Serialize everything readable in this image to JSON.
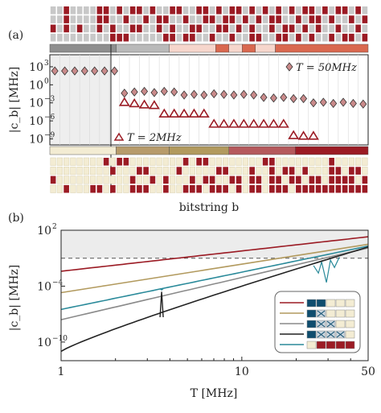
{
  "colors": {
    "red": "#9b1b24",
    "grey": "#c8c8c8",
    "cream": "#f3ecd3",
    "tan": "#b79b6b",
    "rose": "#b5595c",
    "salmon": "#d9684f",
    "pink": "#f6d6cc",
    "lightgrey": "#b9b9b9",
    "darkgrey": "#8e8e8e",
    "gold": "#b29a5e",
    "teal": "#2a8a9a",
    "black": "#222222",
    "navy": "#0f4d6e",
    "line_grey": "#8a8a8a"
  },
  "chart_data": [
    {
      "panel_label": "(a)",
      "type": "scatter",
      "ylabel": "|c_b| [MHz]",
      "xlabel": "bitstring b",
      "y_scale": "log",
      "ylim_exp": [
        -10,
        5
      ],
      "y_tick_exps": [
        3,
        0,
        -3,
        -6,
        -9
      ],
      "y_tick_labels": [
        "10",
        "10",
        "10",
        "10",
        "10"
      ],
      "y_tick_sups": [
        "3",
        "0",
        "−3",
        "−6",
        "−9"
      ],
      "series": [
        {
          "name": "T = 50MHz",
          "marker": "diamond",
          "x": [
            0,
            1,
            2,
            3,
            4,
            5,
            6,
            7,
            8,
            9,
            10,
            11,
            12,
            13,
            14,
            15,
            16,
            17,
            18,
            19,
            20,
            21,
            22,
            23,
            24,
            25,
            26,
            27,
            28,
            29,
            30,
            31
          ],
          "log10_y": [
            2.3,
            2.3,
            2.3,
            2.3,
            2.3,
            2.3,
            2.3,
            -1.4,
            -1.2,
            -1.1,
            -1.3,
            -1.1,
            -1.2,
            -1.7,
            -1.6,
            -1.7,
            -1.5,
            -1.6,
            -1.7,
            -1.6,
            -1.7,
            -2.1,
            -2.2,
            -2.1,
            -2.3,
            -2.3,
            -3.0,
            -2.9,
            -3.1,
            -2.9,
            -3.1,
            -3.2
          ]
        },
        {
          "name": "T = 2MHz",
          "marker": "triangle",
          "x": [
            7,
            8,
            9,
            10,
            11,
            12,
            13,
            14,
            15,
            16,
            17,
            18,
            19,
            20,
            21,
            22,
            23,
            24,
            25,
            26
          ],
          "log10_y": [
            -2.9,
            -3.1,
            -3.3,
            -3.4,
            -4.8,
            -4.8,
            -4.8,
            -4.8,
            -4.8,
            -6.5,
            -6.5,
            -6.5,
            -6.5,
            -6.5,
            -6.5,
            -6.5,
            -6.5,
            -8.4,
            -8.5,
            -8.5
          ]
        }
      ],
      "legend_labels": {
        "top": "T = 50MHz",
        "bottom": "T = 2MHz"
      },
      "top_grid": [
        [
          2,
          2,
          1,
          2,
          2,
          2,
          2,
          1,
          1,
          2,
          1,
          2,
          1,
          1,
          2,
          1,
          2,
          2,
          1,
          1,
          2,
          2,
          1,
          1,
          2,
          1,
          2,
          1,
          1,
          2,
          1,
          2,
          1,
          2,
          1,
          2,
          1,
          2,
          1,
          1,
          2,
          1,
          2,
          1,
          1,
          2,
          1,
          2
        ],
        [
          2,
          2,
          1,
          2,
          2,
          2,
          2,
          1,
          1,
          2,
          2,
          1,
          2,
          2,
          1,
          2,
          1,
          1,
          2,
          2,
          1,
          2,
          2,
          1,
          1,
          2,
          1,
          1,
          2,
          1,
          2,
          1,
          2,
          1,
          1,
          2,
          2,
          1,
          2,
          1,
          1,
          2,
          1,
          2,
          2,
          1,
          2,
          1
        ],
        [
          1,
          2,
          1,
          2,
          1,
          2,
          2,
          1,
          2,
          1,
          2,
          2,
          1,
          1,
          2,
          2,
          1,
          2,
          1,
          2,
          2,
          1,
          1,
          2,
          2,
          1,
          1,
          2,
          1,
          2,
          1,
          2,
          2,
          1,
          2,
          1,
          1,
          2,
          1,
          2,
          1,
          2,
          2,
          1,
          2,
          2,
          1,
          2
        ],
        [
          2,
          2,
          2,
          2,
          2,
          2,
          2,
          2,
          2,
          1,
          1,
          1,
          2,
          2,
          2,
          2,
          2,
          1,
          1,
          2,
          1,
          1,
          2,
          2,
          1,
          2,
          2,
          1,
          2,
          2,
          1,
          1,
          2,
          2,
          1,
          1,
          2,
          1,
          2,
          1,
          2,
          2,
          1,
          2,
          1,
          1,
          2,
          1
        ]
      ],
      "bottom_grid": [
        [
          3,
          3,
          3,
          3,
          3,
          3,
          3,
          3,
          1,
          3,
          1,
          1,
          3,
          3,
          3,
          3,
          3,
          3,
          3,
          3,
          1,
          3,
          1,
          1,
          3,
          3,
          3,
          3,
          3,
          3,
          3,
          3,
          1,
          1,
          3,
          3,
          3,
          3,
          3,
          3,
          3,
          3,
          1,
          3,
          3,
          3,
          3,
          3
        ],
        [
          3,
          3,
          3,
          3,
          3,
          3,
          3,
          3,
          3,
          1,
          3,
          3,
          3,
          1,
          1,
          3,
          3,
          3,
          3,
          1,
          3,
          3,
          3,
          3,
          3,
          1,
          1,
          3,
          3,
          3,
          1,
          3,
          3,
          1,
          3,
          1,
          1,
          3,
          1,
          3,
          3,
          3,
          1,
          1,
          3,
          1,
          1,
          3
        ],
        [
          1,
          3,
          3,
          3,
          3,
          3,
          3,
          3,
          3,
          3,
          3,
          3,
          1,
          3,
          3,
          1,
          3,
          1,
          3,
          3,
          3,
          1,
          3,
          1,
          1,
          3,
          3,
          1,
          1,
          3,
          1,
          1,
          3,
          1,
          1,
          3,
          1,
          1,
          3,
          1,
          1,
          3,
          1,
          1,
          1,
          1,
          3,
          1
        ],
        [
          3,
          3,
          1,
          3,
          3,
          3,
          1,
          1,
          3,
          1,
          3,
          3,
          1,
          1,
          1,
          3,
          3,
          1,
          3,
          3,
          1,
          1,
          1,
          3,
          1,
          1,
          1,
          3,
          1,
          3,
          1,
          1,
          3,
          1,
          1,
          1,
          3,
          1,
          1,
          1,
          1,
          1,
          1,
          1,
          1,
          1,
          1,
          1
        ]
      ],
      "top_bar": [
        {
          "from": 0,
          "to": 10,
          "color": "darkgrey"
        },
        {
          "from": 10,
          "to": 18,
          "color": "lightgrey"
        },
        {
          "from": 18,
          "to": 25,
          "color": "pink"
        },
        {
          "from": 25,
          "to": 27,
          "color": "salmon"
        },
        {
          "from": 27,
          "to": 29,
          "color": "pink"
        },
        {
          "from": 29,
          "to": 31,
          "color": "salmon"
        },
        {
          "from": 31,
          "to": 34,
          "color": "pink"
        },
        {
          "from": 34,
          "to": 48,
          "color": "salmon"
        }
      ],
      "bottom_bar": [
        {
          "from": 0,
          "to": 10,
          "color": "cream"
        },
        {
          "from": 10,
          "to": 18,
          "color": "tan"
        },
        {
          "from": 18,
          "to": 27,
          "color": "gold"
        },
        {
          "from": 27,
          "to": 37,
          "color": "rose"
        },
        {
          "from": 37,
          "to": 48,
          "color": "red"
        }
      ]
    },
    {
      "panel_label": "(b)",
      "type": "line",
      "xlabel": "T [MHz]",
      "ylabel": "|c_b| [MHz]",
      "x_scale": "log",
      "y_scale": "log",
      "xlim": [
        1,
        50
      ],
      "ylim_exp": [
        -12,
        2
      ],
      "x_ticks": [
        1,
        10,
        50
      ],
      "x_tick_labels": [
        "1",
        "10",
        "50"
      ],
      "y_tick_exps": [
        2,
        -4,
        -10
      ],
      "y_tick_labels": [
        "10",
        "10",
        "10"
      ],
      "y_tick_sups": [
        "2",
        "−4",
        "−10"
      ],
      "dashed_log10_y": -1.0,
      "shaded_above_log10_y": -1.0,
      "series": [
        {
          "color": "red",
          "x": [
            1,
            50
          ],
          "log10_y": [
            -2.4,
            1.3
          ]
        },
        {
          "color": "gold",
          "x": [
            1,
            50
          ],
          "log10_y": [
            -4.7,
            0.5
          ]
        },
        {
          "color": "line_grey",
          "x": [
            1,
            50
          ],
          "log10_y": [
            -7.6,
            0.1
          ]
        },
        {
          "color": "teal",
          "x": [
            1,
            50
          ],
          "log10_y": [
            -6.5,
            0.3
          ],
          "dip_x": 30,
          "spike_x": 3.6
        },
        {
          "color": "black",
          "x": [
            1,
            50
          ],
          "log10_y": [
            -11.0,
            0.2
          ],
          "spike_x": 3.6
        }
      ]
    }
  ]
}
